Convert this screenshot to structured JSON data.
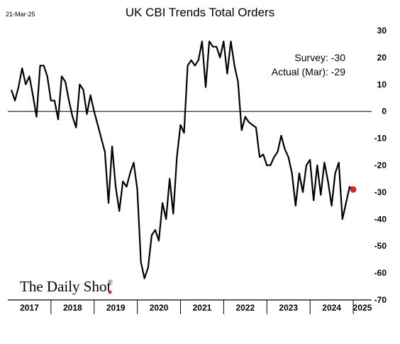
{
  "date_stamp": "21-Mar-25",
  "brand": {
    "name": "The Daily Shot",
    "registered": "®",
    "dot_color": "#e02020"
  },
  "annotations": {
    "survey": "Survey:  -30",
    "actual": "Actual (Mar):  -29"
  },
  "colors": {
    "line": "#000000",
    "highlight": "#e02020",
    "zero_line": "#000000"
  },
  "chart_data": {
    "type": "line",
    "title": "UK CBI Trends Total Orders",
    "xlabel": "",
    "ylabel": "",
    "ylim": [
      -70,
      30
    ],
    "y_ticks": [
      30,
      20,
      10,
      0,
      -10,
      -20,
      -30,
      -40,
      -50,
      -60,
      -70
    ],
    "y_axis_side": "right",
    "grid": false,
    "zero_line": true,
    "years": [
      "2017",
      "2018",
      "2019",
      "2020",
      "2021",
      "2022",
      "2023",
      "2024",
      "2025"
    ],
    "x_start": "2017-01",
    "series": [
      {
        "name": "",
        "frequency": "monthly",
        "values": [
          8,
          4,
          9,
          16,
          10,
          13,
          6,
          -2,
          17,
          17,
          13,
          4,
          4,
          -3,
          13,
          11,
          4,
          -2,
          -6,
          10,
          8,
          -1,
          6,
          0,
          -5,
          -10,
          -15,
          -34,
          -13,
          -28,
          -37,
          -26,
          -28,
          -23,
          -19,
          -29,
          -56,
          -62,
          -58,
          -46,
          -44,
          -48,
          -34,
          -40,
          -25,
          -38,
          -17,
          -5,
          -8,
          17,
          19,
          17,
          19,
          26,
          9,
          26,
          24,
          24,
          20,
          26,
          14,
          26,
          17,
          11,
          -7,
          -2,
          -4,
          -5,
          -6,
          -17,
          -16,
          -20,
          -20,
          -17,
          -15,
          -9,
          -14,
          -17,
          -23,
          -35,
          -23,
          -30,
          -20,
          -18,
          -33,
          -20,
          -31,
          -19,
          -26,
          -35,
          -23,
          -19,
          -40,
          -34,
          -28,
          -29
        ]
      }
    ],
    "highlight_point": {
      "x": "2025-03",
      "y": -29
    },
    "survey_value": -30
  }
}
